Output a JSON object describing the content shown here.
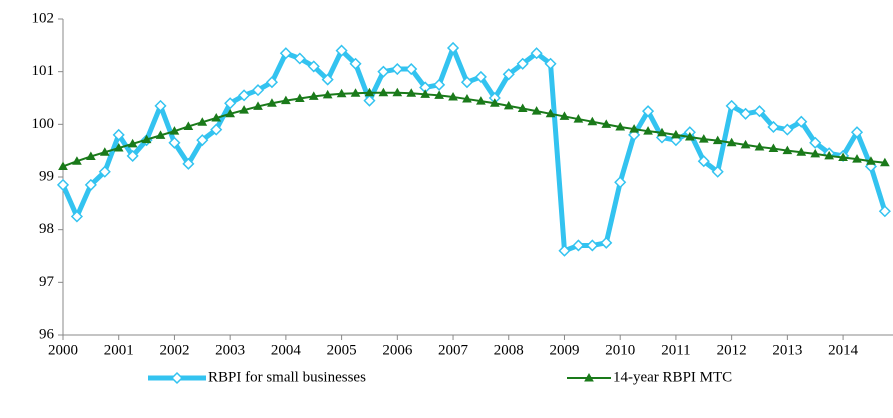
{
  "chart_data": {
    "type": "line",
    "categories": [
      "2000",
      null,
      null,
      null,
      "2001",
      null,
      null,
      null,
      "2002",
      null,
      null,
      null,
      "2003",
      null,
      null,
      null,
      "2004",
      null,
      null,
      null,
      "2005",
      null,
      null,
      null,
      "2006",
      null,
      null,
      null,
      "2007",
      null,
      null,
      null,
      "2008",
      null,
      null,
      null,
      "2009",
      null,
      null,
      null,
      "2010",
      null,
      null,
      null,
      "2011",
      null,
      null,
      null,
      "2012",
      null,
      null,
      null,
      "2013",
      null,
      null,
      null,
      "2014",
      null,
      null,
      null
    ],
    "series": [
      {
        "name": "RBPI for small businesses",
        "color": "#33c3f0",
        "marker": "diamond",
        "values": [
          98.85,
          98.25,
          98.85,
          99.1,
          99.8,
          99.4,
          99.7,
          100.35,
          99.65,
          99.25,
          99.7,
          99.9,
          100.4,
          100.55,
          100.65,
          100.8,
          101.35,
          101.25,
          101.1,
          100.85,
          101.4,
          101.15,
          100.45,
          101.0,
          101.05,
          101.05,
          100.7,
          100.75,
          101.45,
          100.8,
          100.9,
          100.5,
          100.95,
          101.15,
          101.35,
          101.15,
          97.6,
          97.7,
          97.7,
          97.75,
          98.9,
          99.8,
          100.25,
          99.75,
          99.7,
          99.85,
          99.3,
          99.1,
          100.35,
          100.2,
          100.25,
          99.95,
          99.9,
          100.05,
          99.65,
          99.45,
          99.4,
          99.85,
          99.2,
          98.35
        ]
      },
      {
        "name": "14-year RBPI MTC",
        "color": "#1a7a1a",
        "marker": "triangle",
        "values": [
          99.2,
          99.3,
          99.39,
          99.47,
          99.55,
          99.63,
          99.71,
          99.79,
          99.87,
          99.96,
          100.04,
          100.12,
          100.2,
          100.27,
          100.34,
          100.4,
          100.45,
          100.49,
          100.53,
          100.56,
          100.58,
          100.59,
          100.6,
          100.6,
          100.6,
          100.59,
          100.57,
          100.55,
          100.52,
          100.48,
          100.44,
          100.4,
          100.35,
          100.3,
          100.25,
          100.2,
          100.15,
          100.1,
          100.05,
          100.0,
          99.95,
          99.91,
          99.87,
          99.84,
          99.8,
          99.76,
          99.72,
          99.69,
          99.65,
          99.61,
          99.57,
          99.54,
          99.5,
          99.47,
          99.44,
          99.4,
          99.37,
          99.34,
          99.3,
          99.27
        ]
      }
    ],
    "ylim": [
      96,
      102
    ],
    "yticks": [
      96,
      97,
      98,
      99,
      100,
      101,
      102
    ],
    "grid": false,
    "legend": "bottom"
  }
}
